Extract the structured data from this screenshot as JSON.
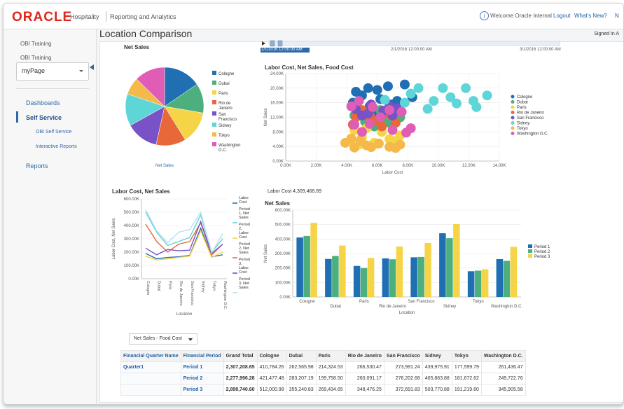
{
  "header": {
    "logo": "ORACLE",
    "product": "Hospitality",
    "module": "Reporting and Analytics",
    "welcome": "Welcome Oracle Internal",
    "logout": "Logout",
    "whats_new": "What's New?",
    "cut_link": "N",
    "info_icon": "info-icon"
  },
  "sidebar": {
    "obi1": "OBI Training",
    "obi2": "OBI Training",
    "select_value": "myPage",
    "dashboards": "Dashboards",
    "self_service": "Self Service",
    "obi_self_service": "OBI Self Service",
    "interactive_reports": "Interactive Reports",
    "reports": "Reports"
  },
  "page": {
    "title": "Location Comparison",
    "signed_in": "Signed In A"
  },
  "slider": {
    "start": "1/1/2016 12:00:00 AM",
    "mid": "2/1/2016 12:00:00 AM",
    "end": "3/1/2016 12:00:00 AM"
  },
  "colors": {
    "Cologne": "#1f6fb2",
    "Dubai": "#4caf7d",
    "Paris": "#f5d547",
    "Rio de Janeiro": "#e8683a",
    "San Francisco": "#7a52c7",
    "Sidney": "#5ed6d8",
    "Tokyo": "#f4b949",
    "Washington D.C.": "#e05db5"
  },
  "chart_data": [
    {
      "type": "pie",
      "title": "Net Sales",
      "xlabel": "Net Sales",
      "categories": [
        "Cologne",
        "Dubai",
        "Paris",
        "Rio de Janeiro",
        "San Francisco",
        "Sidney",
        "Tokyo",
        "Washington D.C."
      ],
      "legend_labels": [
        [
          "Cologne"
        ],
        [
          "Dubai"
        ],
        [
          "Paris"
        ],
        [
          "Rio de",
          "Janeiro"
        ],
        [
          "San",
          "Francisco"
        ],
        [
          "Sidney"
        ],
        [
          "Tokyo"
        ],
        [
          "Washington",
          "D.C."
        ]
      ],
      "values": [
        1340395,
        1060280,
        1169030,
        1069710,
        1165690,
        1149640,
        621510,
        1095830
      ],
      "legend": "right"
    },
    {
      "type": "scatter",
      "title": "Labor Cost, Net Sales, Food Cost",
      "xlabel": "Labor Cost",
      "ylabel": "Net Sales",
      "xlim": [
        0,
        14000
      ],
      "ylim": [
        0,
        24000
      ],
      "xticks": [
        "0.00K",
        "2.00K",
        "4.00K",
        "6.00K",
        "8.00K",
        "10.00K",
        "12.00K",
        "14.00K"
      ],
      "yticks": [
        "0.00K",
        "4.00K",
        "8.00K",
        "12.00K",
        "16.00K",
        "20.00K",
        "24.00K"
      ],
      "legend": "right",
      "series": [
        {
          "name": "Cologne",
          "points": [
            [
              4600,
              19000
            ],
            [
              5400,
              20000
            ],
            [
              6700,
              20500
            ],
            [
              7800,
              21000
            ],
            [
              5000,
              18000
            ],
            [
              6200,
              17000
            ],
            [
              4400,
              16000
            ],
            [
              6900,
              15500
            ],
            [
              5500,
              15000
            ],
            [
              7300,
              16500
            ],
            [
              6000,
              19500
            ],
            [
              5800,
              13500
            ],
            [
              8300,
              17500
            ]
          ]
        },
        {
          "name": "Dubai",
          "points": [
            [
              4500,
              12500
            ],
            [
              5200,
              10800
            ],
            [
              6300,
              11500
            ],
            [
              7500,
              12000
            ],
            [
              5800,
              9500
            ],
            [
              6800,
              10500
            ],
            [
              4700,
              14500
            ],
            [
              7000,
              13500
            ],
            [
              5500,
              12200
            ],
            [
              6200,
              14000
            ]
          ]
        },
        {
          "name": "Paris",
          "points": [
            [
              4200,
              5500
            ],
            [
              5000,
              6500
            ],
            [
              5800,
              5000
            ],
            [
              6800,
              6000
            ],
            [
              7500,
              7000
            ],
            [
              4500,
              8500
            ],
            [
              6300,
              8000
            ],
            [
              5300,
              9000
            ],
            [
              7200,
              5500
            ],
            [
              4800,
              4500
            ],
            [
              6000,
              4800
            ]
          ]
        },
        {
          "name": "Rio de Janeiro",
          "points": [
            [
              4400,
              10000
            ],
            [
              5500,
              12500
            ],
            [
              6300,
              9500
            ],
            [
              7200,
              10500
            ],
            [
              5000,
              14000
            ],
            [
              6800,
              12800
            ],
            [
              4600,
              12000
            ],
            [
              5800,
              11000
            ]
          ]
        },
        {
          "name": "San Francisco",
          "points": [
            [
              4600,
              14200
            ],
            [
              5600,
              15500
            ],
            [
              6400,
              13800
            ],
            [
              7300,
              14500
            ],
            [
              5000,
              12500
            ],
            [
              6800,
              15000
            ],
            [
              5400,
              13000
            ],
            [
              7000,
              12500
            ]
          ]
        },
        {
          "name": "Sidney",
          "points": [
            [
              8700,
              20000
            ],
            [
              10300,
              20000
            ],
            [
              11800,
              20000
            ],
            [
              10800,
              17500
            ],
            [
              12300,
              16500
            ],
            [
              9700,
              16500
            ],
            [
              11200,
              15800
            ],
            [
              13200,
              18000
            ],
            [
              8200,
              18500
            ],
            [
              9300,
              14300
            ],
            [
              12500,
              14800
            ],
            [
              7800,
              16000
            ],
            [
              6500,
              16800
            ]
          ]
        },
        {
          "name": "Tokyo",
          "points": [
            [
              3900,
              5000
            ],
            [
              4500,
              3700
            ],
            [
              5300,
              4300
            ],
            [
              6100,
              4800
            ],
            [
              6800,
              3900
            ],
            [
              7500,
              4500
            ],
            [
              4300,
              6200
            ],
            [
              5600,
              3800
            ],
            [
              7200,
              3600
            ],
            [
              4900,
              5600
            ]
          ]
        },
        {
          "name": "Washington D.C.",
          "points": [
            [
              4800,
              16500
            ],
            [
              5700,
              14800
            ],
            [
              6800,
              14000
            ],
            [
              7600,
              13500
            ],
            [
              8200,
              9000
            ],
            [
              7000,
              8500
            ],
            [
              5500,
              10200
            ],
            [
              4500,
              10000
            ],
            [
              7900,
              7800
            ],
            [
              6200,
              12000
            ],
            [
              5000,
              8000
            ],
            [
              4300,
              15000
            ]
          ]
        }
      ]
    },
    {
      "type": "line",
      "title": "Labor Cost, Net Sales",
      "xlabel": "Location",
      "ylabel": "Labor Cost, Net Sales",
      "ylim": [
        0,
        600000
      ],
      "yticks": [
        "0.00K",
        "100.00K",
        "200.00K",
        "300.00K",
        "400.00K",
        "500.00K",
        "600.00K"
      ],
      "categories": [
        "Cologne",
        "Dubai",
        "Paris",
        "Rio de Janeiro",
        "San Francisco",
        "Sidney",
        "Tokyo",
        "Washington D.C."
      ],
      "legend": "right",
      "series": [
        {
          "name": "Period 1, Labor Cost",
          "legend_lines": [
            "Period",
            "1,",
            "Labor",
            "Cost"
          ],
          "color": "#1f6fb2",
          "values": [
            190000,
            150000,
            160000,
            165000,
            175000,
            380000,
            165000,
            180000
          ]
        },
        {
          "name": "Period 1, Net Sales",
          "legend_lines": [
            "Period",
            "1, Net",
            "Sales"
          ],
          "color": "#5ed6d8",
          "values": [
            500000,
            350000,
            250000,
            280000,
            310000,
            480000,
            200000,
            300000
          ]
        },
        {
          "name": "Period 2, Labor Cost",
          "legend_lines": [
            "Period",
            "2,",
            "Labor",
            "Cost"
          ],
          "color": "#f5d547",
          "values": [
            170000,
            140000,
            150000,
            160000,
            170000,
            360000,
            160000,
            200000
          ]
        },
        {
          "name": "Period 2, Net Sales",
          "legend_lines": [
            "Period",
            "2, Net",
            "Sales"
          ],
          "color": "#e8683a",
          "values": [
            410000,
            280000,
            200000,
            260000,
            280000,
            420000,
            180000,
            260000
          ]
        },
        {
          "name": "Period 3, Labor Cost",
          "legend_lines": [
            "Period",
            "3,",
            "Labor",
            "Cost"
          ],
          "color": "#7a52c7",
          "values": [
            230000,
            180000,
            220000,
            210000,
            215000,
            430000,
            190000,
            260000
          ]
        },
        {
          "name": "Period 3, Net Sales",
          "legend_lines": [
            "Period",
            "3, Net",
            "Sales"
          ],
          "color": "#b9e0f2",
          "values": [
            520000,
            360000,
            270000,
            350000,
            370000,
            500000,
            195000,
            340000
          ]
        }
      ]
    },
    {
      "type": "bar",
      "title": "Net Sales",
      "xlabel": "Location",
      "ylabel": "Net Sales",
      "ylim": [
        0,
        600000
      ],
      "yticks": [
        "0.00K",
        "100.00K",
        "200.00K",
        "300.00K",
        "400.00K",
        "500.00K",
        "600.00K"
      ],
      "categories": [
        "Cologne",
        "Dubai",
        "Paris",
        "Rio de Janeiro",
        "San Francisco",
        "Sidney",
        "Tokyo",
        "Washington D.C."
      ],
      "legend": "right",
      "series": [
        {
          "name": "Period 1",
          "color": "#1f6fb2",
          "values": [
            410784.26,
            262565.98,
            214324.53,
            266530.47,
            273991.24,
            439975.91,
            177599.79,
            261436.47
          ]
        },
        {
          "name": "Period 2",
          "color": "#4caf7d",
          "values": [
            421477.48,
            283207.19,
            199758.5,
            260091.17,
            276202.68,
            405863.88,
            181672.62,
            249722.76
          ]
        },
        {
          "name": "Period 3",
          "color": "#f5d547",
          "values": [
            512000.98,
            355240.83,
            269434.65,
            348476.25,
            372691.83,
            503770.88,
            191219.6,
            345905.58
          ]
        }
      ]
    },
    {
      "type": "table",
      "headers": [
        "Financial Quarter Name",
        "Financial Period",
        "Grand Total",
        "Cologne",
        "Dubai",
        "Paris",
        "Rio de Janeiro",
        "San Francisco",
        "Sidney",
        "Tokyo",
        "Washington D.C."
      ],
      "rows": [
        [
          "Quarter1",
          "Period 1",
          "2,307,208.65",
          "410,784.26",
          "262,565.98",
          "214,324.53",
          "266,530.47",
          "273,991.24",
          "439,975.91",
          "177,599.79",
          "261,436.47"
        ],
        [
          "",
          "Period 2",
          "2,277,996.28",
          "421,477.48",
          "283,207.19",
          "199,758.50",
          "260,091.17",
          "276,202.68",
          "405,863.88",
          "181,672.62",
          "249,722.76"
        ],
        [
          "",
          "Period 3",
          "2,898,740.60",
          "512,000.98",
          "355,240.83",
          "269,434.65",
          "348,476.25",
          "372,691.83",
          "503,770.88",
          "191,219.60",
          "345,905.58"
        ]
      ]
    }
  ],
  "labor_cost_total": "Labor Cost 4,309,468.89",
  "view_selector": "Net Sales - Food Cost"
}
